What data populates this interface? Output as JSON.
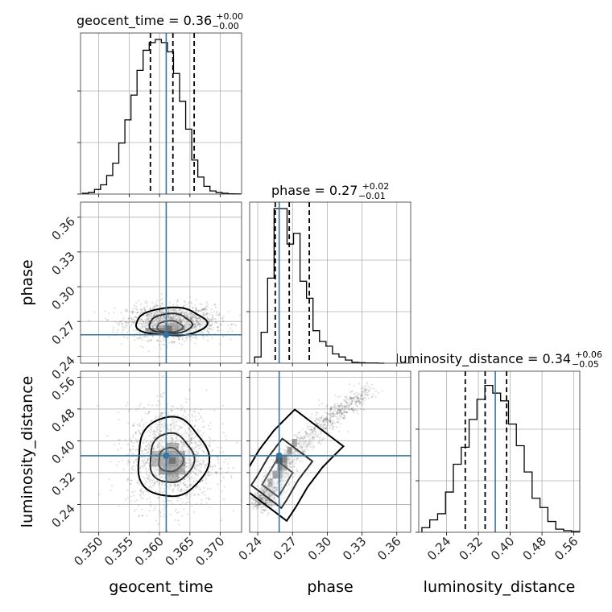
{
  "chart_data": {
    "type": "corner",
    "parameters": [
      "geocent_time",
      "phase",
      "luminosity_distance"
    ],
    "truth_color": "#3274a1",
    "truths": {
      "geocent_time": 0.3611,
      "phase": 0.2585,
      "luminosity_distance": 0.3625
    },
    "diagonal": [
      {
        "name": "geocent_time",
        "title_name": "geocent_time",
        "title_value": "0.36",
        "title_plus": "+0.00",
        "title_minus": "−0.00",
        "xlim": [
          0.347,
          0.3735
        ],
        "xticks": [
          0.35,
          0.355,
          0.36,
          0.365,
          0.37
        ],
        "xticklabels": [
          "0.350",
          "0.355",
          "0.360",
          "0.365",
          "0.370"
        ],
        "quantiles": [
          0.3585,
          0.3622,
          0.3657
        ],
        "bins_lo": 0.3473,
        "bin_width": 0.001,
        "hist": [
          0.005,
          0.01,
          0.03,
          0.06,
          0.12,
          0.2,
          0.33,
          0.48,
          0.64,
          0.8,
          0.93,
          0.98,
          1.0,
          0.98,
          0.92,
          0.78,
          0.6,
          0.42,
          0.22,
          0.11,
          0.05,
          0.02,
          0.01,
          0.005,
          0.002,
          0.001
        ]
      },
      {
        "name": "phase",
        "title_name": "phase",
        "title_value": "0.27",
        "title_plus": "+0.02",
        "title_minus": "−0.01",
        "xlim": [
          0.233,
          0.372
        ],
        "xticks": [
          0.24,
          0.27,
          0.3,
          0.33,
          0.36
        ],
        "xticklabels": [
          "0.24",
          "0.27",
          "0.30",
          "0.33",
          "0.36"
        ],
        "quantiles": [
          0.2551,
          0.2672,
          0.2845
        ],
        "bins_lo": 0.2373,
        "bin_width": 0.0056,
        "hist": [
          0.04,
          0.2,
          0.55,
          1.0,
          1.0,
          0.77,
          0.84,
          0.53,
          0.42,
          0.21,
          0.14,
          0.11,
          0.06,
          0.04,
          0.02,
          0.005,
          0.003,
          0.001,
          0.001,
          0.0
        ]
      },
      {
        "name": "luminosity_distance",
        "title_name": "luminosity_distance",
        "title_value": "0.34",
        "title_plus": "+0.06",
        "title_minus": "−0.05",
        "xlim": [
          0.17,
          0.575
        ],
        "xticks": [
          0.24,
          0.32,
          0.4,
          0.48,
          0.56
        ],
        "xticklabels": [
          "0.24",
          "0.32",
          "0.40",
          "0.48",
          "0.56"
        ],
        "quantiles": [
          0.287,
          0.337,
          0.391
        ],
        "bins_lo": 0.1779,
        "bin_width": 0.0198,
        "hist": [
          0.03,
          0.08,
          0.12,
          0.26,
          0.44,
          0.55,
          0.73,
          0.86,
          0.95,
          0.9,
          0.85,
          0.7,
          0.56,
          0.39,
          0.22,
          0.16,
          0.07,
          0.02,
          0.01,
          0.005
        ]
      }
    ],
    "offdiagonal": [
      {
        "x": "geocent_time",
        "y": "phase",
        "ylim": [
          0.234,
          0.373
        ],
        "yticks": [
          0.24,
          0.27,
          0.3,
          0.33,
          0.36
        ],
        "yticklabels": [
          "0.24",
          "0.27",
          "0.30",
          "0.33",
          "0.36"
        ],
        "dense_spot": [
          0.3615,
          0.2635
        ],
        "density_cells": [
          [
            0.3593,
            0.2614,
            0.45
          ],
          [
            0.3604,
            0.2614,
            0.65
          ],
          [
            0.3615,
            0.2614,
            0.55
          ],
          [
            0.3626,
            0.2614,
            0.35
          ],
          [
            0.3593,
            0.2635,
            0.55
          ],
          [
            0.3604,
            0.2635,
            0.9
          ],
          [
            0.3615,
            0.2635,
            1.0
          ],
          [
            0.3626,
            0.2635,
            0.6
          ],
          [
            0.3637,
            0.2635,
            0.3
          ],
          [
            0.3604,
            0.2656,
            0.45
          ],
          [
            0.3615,
            0.2656,
            0.55
          ],
          [
            0.3626,
            0.2656,
            0.4
          ],
          [
            0.3637,
            0.2656,
            0.25
          ],
          [
            0.3615,
            0.2677,
            0.3
          ],
          [
            0.3626,
            0.2677,
            0.25
          ],
          [
            0.3582,
            0.2614,
            0.25
          ],
          [
            0.3582,
            0.2635,
            0.3
          ]
        ],
        "contours": [
          {
            "cx": 0.3617,
            "cy": 0.2656,
            "rx": 0.0021,
            "ry": 0.0048
          },
          {
            "cx": 0.3618,
            "cy": 0.268,
            "rx": 0.0035,
            "ry": 0.0085
          },
          {
            "cx": 0.3619,
            "cy": 0.2695,
            "rx": 0.0058,
            "ry": 0.012
          }
        ]
      },
      {
        "x": "geocent_time",
        "y": "luminosity_distance",
        "ylim": [
          0.17,
          0.575
        ],
        "yticks": [
          0.24,
          0.32,
          0.4,
          0.48,
          0.56
        ],
        "yticklabels": [
          "0.24",
          "0.32",
          "0.40",
          "0.48",
          "0.56"
        ],
        "dense_spot": [
          0.3621,
          0.3505
        ],
        "density_cells": [
          [
            0.3604,
            0.345,
            0.5
          ],
          [
            0.3615,
            0.345,
            0.75
          ],
          [
            0.3626,
            0.345,
            0.7
          ],
          [
            0.3637,
            0.345,
            0.45
          ],
          [
            0.3604,
            0.365,
            0.45
          ],
          [
            0.3615,
            0.365,
            0.65
          ],
          [
            0.3626,
            0.365,
            0.6
          ],
          [
            0.3637,
            0.365,
            0.35
          ],
          [
            0.3604,
            0.325,
            0.4
          ],
          [
            0.3615,
            0.325,
            0.6
          ],
          [
            0.3626,
            0.325,
            0.55
          ],
          [
            0.3637,
            0.325,
            0.3
          ],
          [
            0.3593,
            0.345,
            0.3
          ],
          [
            0.3593,
            0.365,
            0.25
          ],
          [
            0.3615,
            0.385,
            0.35
          ],
          [
            0.3626,
            0.385,
            0.3
          ],
          [
            0.3615,
            0.305,
            0.3
          ],
          [
            0.3626,
            0.305,
            0.25
          ]
        ],
        "contours": [
          {
            "cx": 0.3618,
            "cy": 0.352,
            "rx": 0.002,
            "ry": 0.03
          },
          {
            "cx": 0.3619,
            "cy": 0.356,
            "rx": 0.0036,
            "ry": 0.062
          },
          {
            "cx": 0.362,
            "cy": 0.358,
            "rx": 0.0058,
            "ry": 0.1
          }
        ]
      },
      {
        "x": "phase",
        "y": "luminosity_distance",
        "ylim": [
          0.17,
          0.575
        ],
        "dense_spot": [
          0.2585,
          0.3505
        ],
        "density_cells": [
          [
            0.2549,
            0.315,
            0.6
          ],
          [
            0.2591,
            0.335,
            0.85
          ],
          [
            0.2633,
            0.355,
            0.7
          ],
          [
            0.2675,
            0.375,
            0.5
          ],
          [
            0.2717,
            0.395,
            0.35
          ],
          [
            0.2507,
            0.295,
            0.4
          ],
          [
            0.2591,
            0.315,
            0.4
          ],
          [
            0.2633,
            0.335,
            0.35
          ]
        ],
        "ridge": [
          [
            0.244,
            0.245
          ],
          [
            0.252,
            0.28
          ],
          [
            0.262,
            0.33
          ],
          [
            0.275,
            0.38
          ],
          [
            0.292,
            0.43
          ],
          [
            0.308,
            0.47
          ],
          [
            0.325,
            0.505
          ],
          [
            0.34,
            0.535
          ]
        ],
        "contours": [
          {
            "t0": 0.12,
            "t1": 0.3,
            "w": 0.007
          },
          {
            "t0": 0.06,
            "t1": 0.42,
            "w": 0.013
          },
          {
            "t0": 0.0,
            "t1": 0.58,
            "w": 0.021
          }
        ]
      }
    ]
  }
}
